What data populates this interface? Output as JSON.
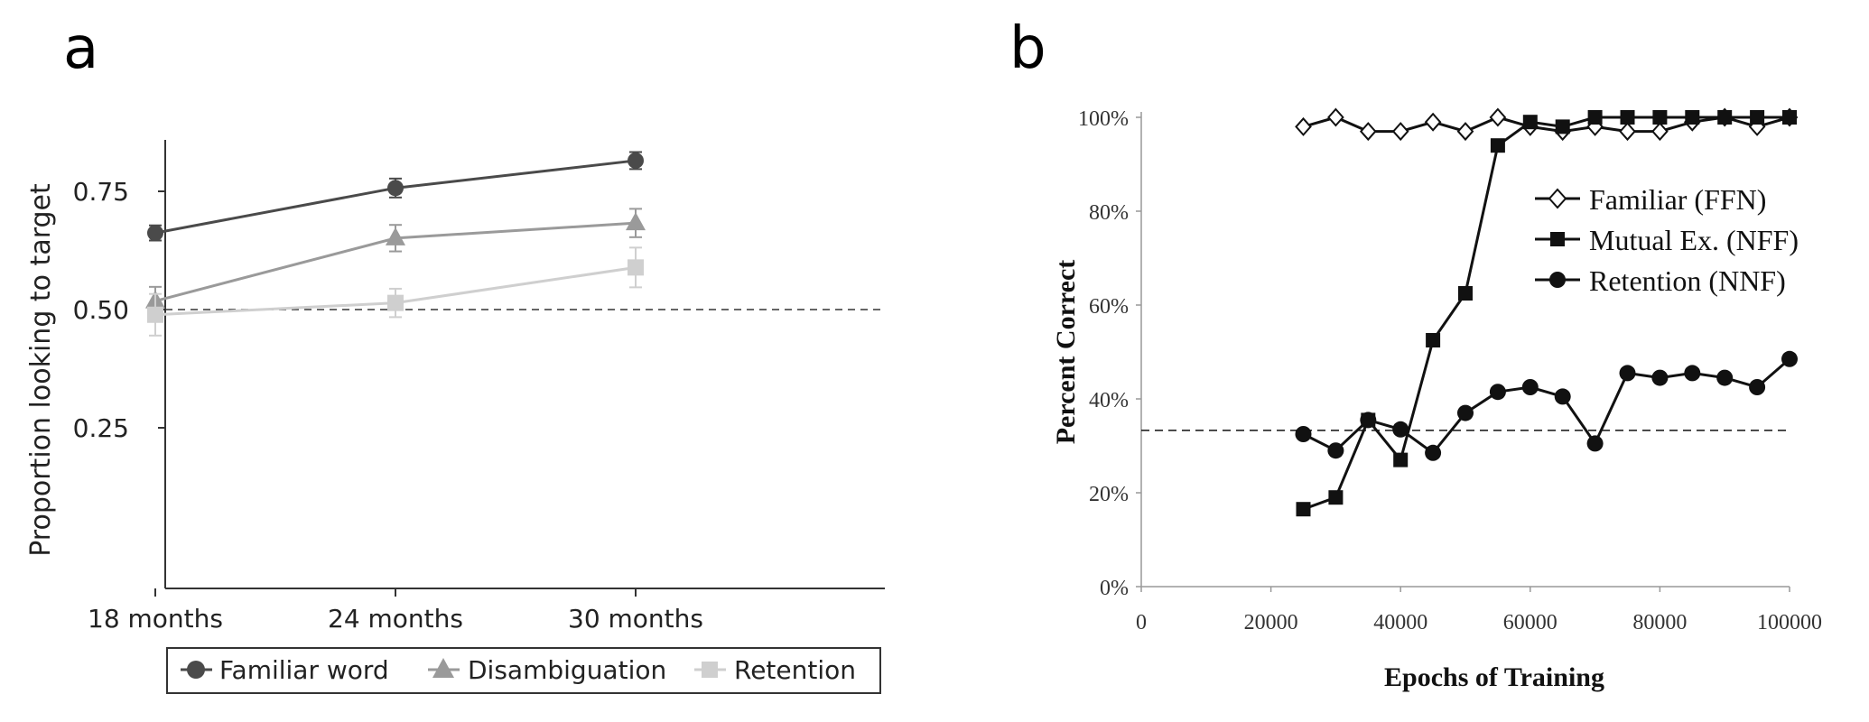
{
  "panel_labels": {
    "a": "a",
    "b": "b"
  },
  "chart_data": [
    {
      "type": "line",
      "panel": "a",
      "title": "",
      "xlabel": "",
      "ylabel": "Proportion looking to target",
      "categories": [
        "18 months",
        "24 months",
        "30 months"
      ],
      "y_ticks": [
        0.25,
        0.5,
        0.75
      ],
      "y_tick_labels": [
        "0.25",
        "0.50",
        "0.75"
      ],
      "ylim": [
        0.24,
        0.9
      ],
      "reference_line": 0.5,
      "legend_position": "bottom",
      "series": [
        {
          "name": "Familiar word",
          "marker": "circle",
          "color": "#4a4a4a",
          "values": [
            0.662,
            0.757,
            0.815
          ],
          "error": [
            0.016,
            0.02,
            0.018
          ]
        },
        {
          "name": "Disambiguation",
          "marker": "triangle",
          "color": "#9a9a9a",
          "values": [
            0.518,
            0.651,
            0.683
          ],
          "error": [
            0.03,
            0.028,
            0.03
          ]
        },
        {
          "name": "Retention",
          "marker": "square",
          "color": "#cfcfcf",
          "values": [
            0.489,
            0.514,
            0.589
          ],
          "error": [
            0.044,
            0.03,
            0.042
          ]
        }
      ]
    },
    {
      "type": "line",
      "panel": "b",
      "title": "",
      "xlabel": "Epochs of Training",
      "ylabel": "Percent Correct",
      "x_ticks": [
        0,
        20000,
        40000,
        60000,
        80000,
        100000
      ],
      "x_tick_labels": [
        "0",
        "20000",
        "40000",
        "60000",
        "80000",
        "100000"
      ],
      "y_ticks": [
        0,
        20,
        40,
        60,
        80,
        100
      ],
      "y_tick_labels": [
        "0%",
        "20%",
        "40%",
        "60%",
        "80%",
        "100%"
      ],
      "xlim": [
        0,
        100000
      ],
      "ylim": [
        0,
        100
      ],
      "reference_line": 33.3,
      "legend_position": "right",
      "x": [
        25000,
        30000,
        35000,
        40000,
        45000,
        50000,
        55000,
        60000,
        65000,
        70000,
        75000,
        80000,
        85000,
        90000,
        95000,
        100000
      ],
      "series": [
        {
          "name": "Familiar (FFN)",
          "marker": "diamond-open",
          "values": [
            98,
            100,
            97,
            97,
            99,
            97,
            100,
            98,
            97,
            98,
            97,
            97,
            99,
            100,
            98,
            100
          ]
        },
        {
          "name": "Mutual Ex. (NFF)",
          "marker": "square",
          "values": [
            16.5,
            19,
            35.5,
            27,
            52.5,
            62.5,
            94,
            99,
            98,
            100,
            100,
            100,
            100,
            100,
            100,
            100
          ]
        },
        {
          "name": "Retention (NNF)",
          "marker": "circle",
          "values": [
            32.5,
            29,
            35.5,
            33.5,
            28.5,
            37,
            41.5,
            42.5,
            40.5,
            30.5,
            45.5,
            44.5,
            45.5,
            44.5,
            42.5,
            48.5
          ]
        }
      ]
    }
  ]
}
